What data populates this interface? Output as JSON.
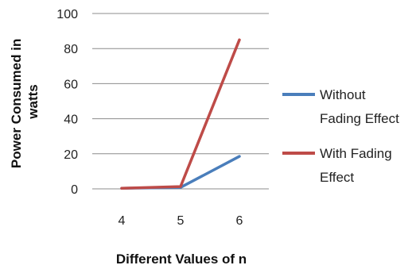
{
  "chart_data": {
    "type": "line",
    "title": "",
    "xlabel": "Different Values of n",
    "ylabel_lines": [
      "Power Consumed in",
      "watts"
    ],
    "categories": [
      "4",
      "5",
      "6"
    ],
    "ylim": [
      0,
      100
    ],
    "yticks": [
      0,
      20,
      40,
      60,
      80,
      100
    ],
    "grid": "horizontal",
    "legend_position": "right",
    "series": [
      {
        "name_lines": [
          "Without",
          "Fading Effect"
        ],
        "color": "#4a7ebb",
        "values": [
          0.3,
          0.8,
          18.5
        ]
      },
      {
        "name_lines": [
          "With Fading",
          "Effect"
        ],
        "color": "#be4b48",
        "values": [
          0.3,
          1.3,
          85
        ]
      }
    ]
  }
}
